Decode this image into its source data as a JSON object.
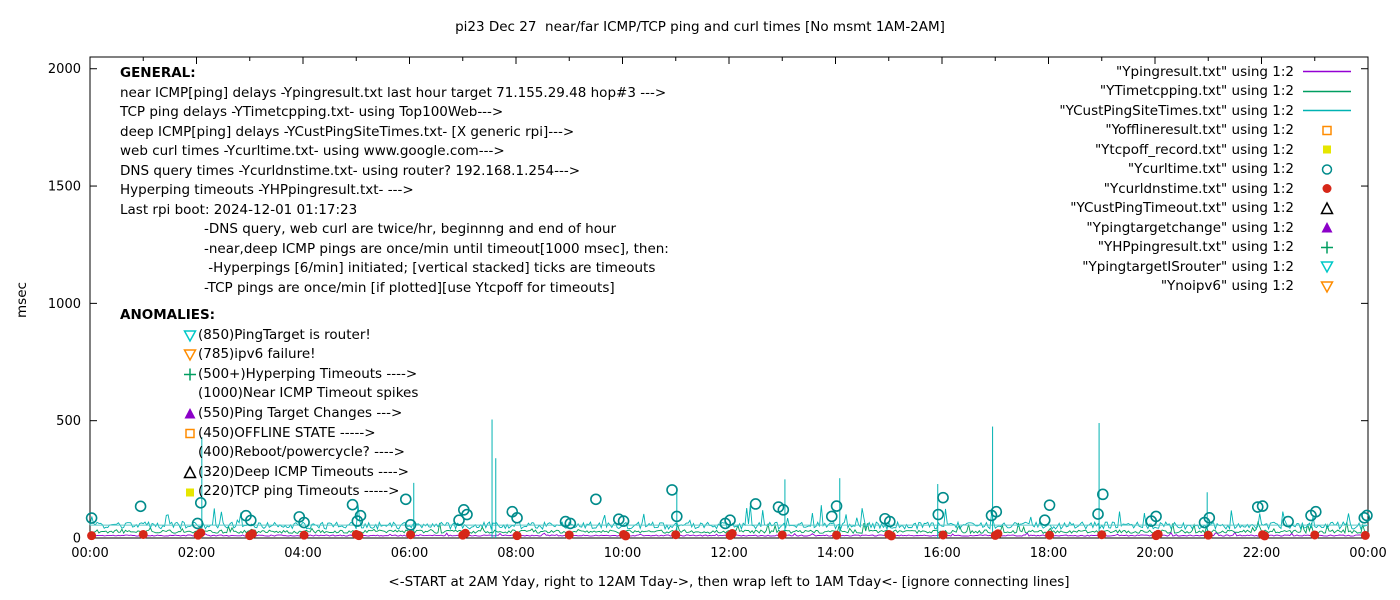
{
  "title": "pi23 Dec 27  near/far ICMP/TCP ping and curl times [No msmt 1AM-2AM]",
  "ylabel": "msec",
  "xlabel": "<-START at 2AM Yday, right to 12AM Tday->, then wrap left to 1AM Tday<- [ignore connecting lines]",
  "general": {
    "heading": "GENERAL:",
    "lines": [
      "near ICMP[ping] delays -Ypingresult.txt last hour target 71.155.29.48 hop#3 --->",
      "TCP ping delays -YTimetcpping.txt- using Top100Web--->",
      "deep ICMP[ping] delays -YCustPingSiteTimes.txt- [X generic rpi]--->",
      "web curl times -Ycurltime.txt- using www.google.com--->",
      "DNS query times -Ycurldnstime.txt- using router? 192.168.1.254--->",
      "Hyperping timeouts -YHPpingresult.txt- --->",
      "Last rpi boot: 2024-12-01 01:17:23"
    ],
    "notes": [
      "-DNS query, web curl are twice/hr, beginnng and end of hour",
      "-near,deep ICMP pings are once/min until timeout[1000 msec], then:",
      " -Hyperpings [6/min] initiated; [vertical stacked] ticks are timeouts",
      "-TCP pings are once/min [if plotted][use Ytcpoff for timeouts]"
    ]
  },
  "anomalies": {
    "heading": "ANOMALIES:",
    "items": [
      {
        "marker": "tri-down-open",
        "color": "#00c8c8",
        "text": "(850)PingTarget is router!"
      },
      {
        "marker": "tri-down-open",
        "color": "#ff8c00",
        "text": "(785)ipv6 failure!"
      },
      {
        "marker": "plus",
        "color": "#009e60",
        "text": "(500+)Hyperping Timeouts ---->"
      },
      {
        "marker": "none",
        "color": "#000000",
        "text": "(1000)Near ICMP Timeout spikes"
      },
      {
        "marker": "tri-up-filled",
        "color": "#8b00c8",
        "text": "(550)Ping Target Changes --->"
      },
      {
        "marker": "square-open",
        "color": "#ff8c00",
        "text": "(450)OFFLINE STATE ----->"
      },
      {
        "marker": "none",
        "color": "#000000",
        "text": "(400)Reboot/powercycle? ---->"
      },
      {
        "marker": "tri-up-open",
        "color": "#000000",
        "text": "(320)Deep ICMP Timeouts ---->"
      },
      {
        "marker": "square-filled",
        "color": "#e6e600",
        "text": "(220)TCP ping Timeouts ----->"
      }
    ]
  },
  "chart_data": {
    "type": "line",
    "title": "pi23 Dec 27  near/far ICMP/TCP ping and curl times [No msmt 1AM-2AM]",
    "xlabel": "<-START at 2AM Yday, right to 12AM Tday->, then wrap left to 1AM Tday<- [ignore connecting lines]",
    "ylabel": "msec",
    "x_range_hours": [
      0,
      24
    ],
    "ylim": [
      0,
      2050
    ],
    "y_ticks": [
      0,
      500,
      1000,
      1500,
      2000
    ],
    "x_tick_labels": [
      "00:00",
      "02:00",
      "04:00",
      "06:00",
      "08:00",
      "10:00",
      "12:00",
      "14:00",
      "16:00",
      "18:00",
      "20:00",
      "22:00",
      "00:00"
    ],
    "grid": false,
    "legend_position": "top-right",
    "legend": [
      {
        "label": "\"Ypingresult.txt\" using 1:2",
        "sample": "line",
        "marker": "",
        "color": "#9400d3"
      },
      {
        "label": "\"YTimetcpping.txt\" using 1:2",
        "sample": "line",
        "marker": "",
        "color": "#009e60"
      },
      {
        "label": "\"YCustPingSiteTimes.txt\" using 1:2",
        "sample": "line",
        "marker": "",
        "color": "#00b2b2"
      },
      {
        "label": "\"Yofflineresult.txt\" using 1:2",
        "sample": "marker",
        "marker": "square-open",
        "color": "#ff8c00"
      },
      {
        "label": "\"Ytcpoff_record.txt\" using 1:2",
        "sample": "marker",
        "marker": "square-filled",
        "color": "#e6e600"
      },
      {
        "label": "\"Ycurltime.txt\" using 1:2",
        "sample": "marker",
        "marker": "circle-open",
        "color": "#008b8b"
      },
      {
        "label": "\"Ycurldnstime.txt\" using 1:2",
        "sample": "marker",
        "marker": "circle-filled",
        "color": "#d62718"
      },
      {
        "label": "\"YCustPingTimeout.txt\" using 1:2",
        "sample": "marker",
        "marker": "tri-up-open",
        "color": "#000000"
      },
      {
        "label": "\"Ypingtargetchange\" using 1:2",
        "sample": "marker",
        "marker": "tri-up-filled",
        "color": "#8b00c8"
      },
      {
        "label": "\"YHPpingresult.txt\" using 1:2",
        "sample": "marker",
        "marker": "plus",
        "color": "#009e60"
      },
      {
        "label": "\"YpingtargetISrouter\" using 1:2",
        "sample": "marker",
        "marker": "tri-down-open",
        "color": "#00c8c8"
      },
      {
        "label": "\"Ynoipv6\" using 1:2",
        "sample": "marker",
        "marker": "tri-down-open",
        "color": "#ff8c00"
      }
    ],
    "series": [
      {
        "name": "Ypingresult near ICMP ping delay",
        "kind": "noisy-line",
        "color": "#9400d3",
        "base": 8,
        "amp": 5,
        "seed": 11
      },
      {
        "name": "YTimetcpping TCP ping delay",
        "kind": "noisy-line",
        "color": "#009e60",
        "base": 20,
        "amp": 14,
        "seed": 22
      },
      {
        "name": "YCustPingSiteTimes deep ICMP",
        "kind": "noisy-line",
        "color": "#00b2b2",
        "base": 38,
        "amp": 30,
        "seed": 33
      }
    ],
    "flat_line": {
      "name": "steady deep-ICMP level",
      "value": 55,
      "color": "#5bc8c8"
    },
    "spikes": {
      "name": "deep ICMP spikes (msec)",
      "color": "#00b2b2",
      "points": [
        [
          2.1,
          430
        ],
        [
          6.08,
          235
        ],
        [
          7.55,
          505
        ],
        [
          7.62,
          340
        ],
        [
          11.02,
          210
        ],
        [
          13.05,
          250
        ],
        [
          14.08,
          255
        ],
        [
          15.92,
          230
        ],
        [
          16.95,
          475
        ],
        [
          18.95,
          490
        ],
        [
          20.98,
          195
        ]
      ]
    },
    "curl_times": {
      "name": "Ycurltime web curl times (hour, msec)",
      "color": "#008b8b",
      "points": [
        [
          0.03,
          85
        ],
        [
          0.95,
          135
        ],
        [
          2.02,
          62
        ],
        [
          2.08,
          150
        ],
        [
          2.93,
          95
        ],
        [
          3.02,
          75
        ],
        [
          3.93,
          90
        ],
        [
          4.02,
          66
        ],
        [
          4.93,
          142
        ],
        [
          5.02,
          72
        ],
        [
          5.08,
          95
        ],
        [
          5.93,
          165
        ],
        [
          6.02,
          56
        ],
        [
          6.93,
          76
        ],
        [
          7.02,
          120
        ],
        [
          7.08,
          100
        ],
        [
          7.93,
          112
        ],
        [
          8.02,
          86
        ],
        [
          8.93,
          70
        ],
        [
          9.02,
          62
        ],
        [
          9.5,
          165
        ],
        [
          9.93,
          80
        ],
        [
          10.02,
          72
        ],
        [
          10.93,
          205
        ],
        [
          11.02,
          92
        ],
        [
          11.93,
          62
        ],
        [
          12.02,
          76
        ],
        [
          12.5,
          145
        ],
        [
          12.93,
          132
        ],
        [
          13.02,
          120
        ],
        [
          13.93,
          92
        ],
        [
          14.02,
          136
        ],
        [
          14.93,
          82
        ],
        [
          15.02,
          70
        ],
        [
          15.93,
          100
        ],
        [
          16.02,
          172
        ],
        [
          16.93,
          96
        ],
        [
          17.02,
          112
        ],
        [
          17.93,
          76
        ],
        [
          18.02,
          140
        ],
        [
          18.93,
          102
        ],
        [
          19.02,
          186
        ],
        [
          19.93,
          72
        ],
        [
          20.02,
          92
        ],
        [
          20.93,
          66
        ],
        [
          21.02,
          86
        ],
        [
          21.93,
          132
        ],
        [
          22.02,
          136
        ],
        [
          22.5,
          70
        ],
        [
          22.93,
          96
        ],
        [
          23.02,
          112
        ],
        [
          23.93,
          86
        ],
        [
          23.98,
          96
        ]
      ]
    },
    "dns_times": {
      "name": "Ycurldnstime DNS query times (hour, msec)",
      "color": "#d62718",
      "points": [
        [
          0.03,
          10
        ],
        [
          1.0,
          15
        ],
        [
          2.03,
          12
        ],
        [
          2.08,
          22
        ],
        [
          3.0,
          10
        ],
        [
          3.05,
          18
        ],
        [
          4.02,
          12
        ],
        [
          5.0,
          15
        ],
        [
          5.05,
          10
        ],
        [
          6.02,
          14
        ],
        [
          7.0,
          12
        ],
        [
          7.05,
          20
        ],
        [
          8.02,
          10
        ],
        [
          9.0,
          13
        ],
        [
          10.02,
          15
        ],
        [
          10.06,
          9
        ],
        [
          11.0,
          14
        ],
        [
          12.02,
          11
        ],
        [
          12.06,
          19
        ],
        [
          13.0,
          13
        ],
        [
          14.02,
          12
        ],
        [
          15.0,
          15
        ],
        [
          15.05,
          9
        ],
        [
          16.02,
          13
        ],
        [
          17.0,
          11
        ],
        [
          17.05,
          18
        ],
        [
          18.02,
          12
        ],
        [
          19.0,
          14
        ],
        [
          20.02,
          10
        ],
        [
          20.06,
          16
        ],
        [
          21.0,
          12
        ],
        [
          22.02,
          14
        ],
        [
          22.06,
          9
        ],
        [
          23.0,
          13
        ],
        [
          23.95,
          11
        ]
      ]
    }
  }
}
